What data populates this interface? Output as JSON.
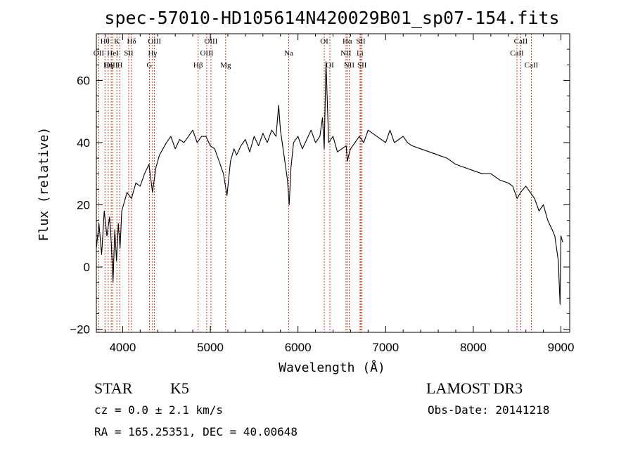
{
  "chart_data": {
    "type": "line",
    "title": "spec-57010-HD105614N420029B01_sp07-154.fits",
    "xlabel": "Wavelength (Å)",
    "ylabel": "Flux (relative)",
    "xlim": [
      3700,
      9100
    ],
    "ylim": [
      -21,
      75
    ],
    "x_ticks": [
      4000,
      5000,
      6000,
      7000,
      8000,
      9000
    ],
    "x_tick_labels": [
      "4000",
      "5000",
      "6000",
      "7000",
      "8000",
      "9000"
    ],
    "y_ticks": [
      -20,
      0,
      20,
      40,
      60
    ],
    "y_tick_labels": [
      "-20",
      "0",
      "20",
      "40",
      "60"
    ],
    "series": [
      {
        "name": "spectrum",
        "x": [
          3700,
          3730,
          3760,
          3790,
          3820,
          3850,
          3870,
          3890,
          3910,
          3930,
          3950,
          3970,
          3990,
          4010,
          4050,
          4100,
          4150,
          4200,
          4250,
          4300,
          4340,
          4380,
          4420,
          4460,
          4500,
          4550,
          4600,
          4650,
          4700,
          4750,
          4800,
          4850,
          4900,
          4950,
          5000,
          5050,
          5100,
          5150,
          5190,
          5230,
          5270,
          5300,
          5350,
          5400,
          5450,
          5500,
          5550,
          5600,
          5650,
          5700,
          5750,
          5780,
          5800,
          5850,
          5880,
          5900,
          5920,
          5950,
          6000,
          6050,
          6100,
          6150,
          6200,
          6250,
          6280,
          6300,
          6320,
          6350,
          6400,
          6450,
          6500,
          6550,
          6563,
          6580,
          6600,
          6650,
          6700,
          6750,
          6800,
          6850,
          6900,
          6950,
          7000,
          7050,
          7100,
          7150,
          7200,
          7250,
          7300,
          7400,
          7500,
          7600,
          7700,
          7800,
          7900,
          8000,
          8100,
          8200,
          8300,
          8400,
          8450,
          8500,
          8540,
          8600,
          8650,
          8700,
          8750,
          8800,
          8850,
          8900,
          8930,
          8950,
          8970,
          8990,
          9000,
          9020
        ],
        "values": [
          6,
          14,
          4,
          18,
          10,
          16,
          8,
          -5,
          12,
          2,
          14,
          6,
          18,
          20,
          24,
          22,
          27,
          26,
          30,
          33,
          24,
          32,
          36,
          38,
          40,
          42,
          38,
          41,
          40,
          42,
          44,
          40,
          42,
          42,
          39,
          38,
          34,
          30,
          23,
          34,
          38,
          36,
          39,
          41,
          37,
          42,
          39,
          43,
          40,
          44,
          42,
          52,
          44,
          34,
          28,
          20,
          32,
          40,
          42,
          38,
          41,
          44,
          40,
          42,
          48,
          38,
          66,
          40,
          42,
          37,
          38,
          39,
          34,
          36,
          38,
          40,
          42,
          40,
          44,
          43,
          42,
          41,
          40,
          44,
          40,
          41,
          42,
          40,
          39,
          38,
          37,
          36,
          35,
          33,
          32,
          31,
          30,
          30,
          28,
          27,
          26,
          22,
          24,
          26,
          24,
          22,
          18,
          20,
          15,
          12,
          10,
          6,
          2,
          -12,
          10,
          8
        ]
      }
    ],
    "line_labels": [
      {
        "label": "Hθ",
        "wavelength": 3798,
        "row": 1
      },
      {
        "label": "OII",
        "wavelength": 3727,
        "row": 2
      },
      {
        "label": "OIII",
        "wavelength": 3869,
        "row": 3
      },
      {
        "label": "K",
        "wavelength": 3934,
        "row": 1
      },
      {
        "label": "HeI",
        "wavelength": 3889,
        "row": 2
      },
      {
        "label": "Hη",
        "wavelength": 3835,
        "row": 3
      },
      {
        "label": "H",
        "wavelength": 3969,
        "row": 3
      },
      {
        "label": "Hδ",
        "wavelength": 4102,
        "row": 1
      },
      {
        "label": "SII",
        "wavelength": 4069,
        "row": 2
      },
      {
        "label": "OIII",
        "wavelength": 4363,
        "row": 1
      },
      {
        "label": "Hγ",
        "wavelength": 4341,
        "row": 2
      },
      {
        "label": "G",
        "wavelength": 4305,
        "row": 3
      },
      {
        "label": "OIII",
        "wavelength": 5007,
        "row": 1
      },
      {
        "label": "OIII",
        "wavelength": 4959,
        "row": 2
      },
      {
        "label": "Hβ",
        "wavelength": 4861,
        "row": 3
      },
      {
        "label": "Mg",
        "wavelength": 5175,
        "row": 3
      },
      {
        "label": "Na",
        "wavelength": 5894,
        "row": 2
      },
      {
        "label": "OI",
        "wavelength": 6300,
        "row": 1
      },
      {
        "label": "OI",
        "wavelength": 6364,
        "row": 3
      },
      {
        "label": "Hα",
        "wavelength": 6563,
        "row": 1
      },
      {
        "label": "NII",
        "wavelength": 6548,
        "row": 2
      },
      {
        "label": "NII",
        "wavelength": 6584,
        "row": 3
      },
      {
        "label": "SII",
        "wavelength": 6717,
        "row": 1
      },
      {
        "label": "Li",
        "wavelength": 6708,
        "row": 2
      },
      {
        "label": "SII",
        "wavelength": 6731,
        "row": 3
      },
      {
        "label": "CaII",
        "wavelength": 8542,
        "row": 1
      },
      {
        "label": "CaII",
        "wavelength": 8498,
        "row": 2
      },
      {
        "label": "CaII",
        "wavelength": 8662,
        "row": 3
      }
    ],
    "line_color": "#cc2200",
    "grid": false,
    "legend": "none"
  },
  "info": {
    "object_class": "STAR",
    "subclass": "K5",
    "cz": "cz = 0.0 ± 2.1 km/s",
    "coords": "RA = 165.25351, DEC =  40.00648",
    "survey": "LAMOST DR3",
    "obs_date": "Obs-Date: 20141218"
  }
}
